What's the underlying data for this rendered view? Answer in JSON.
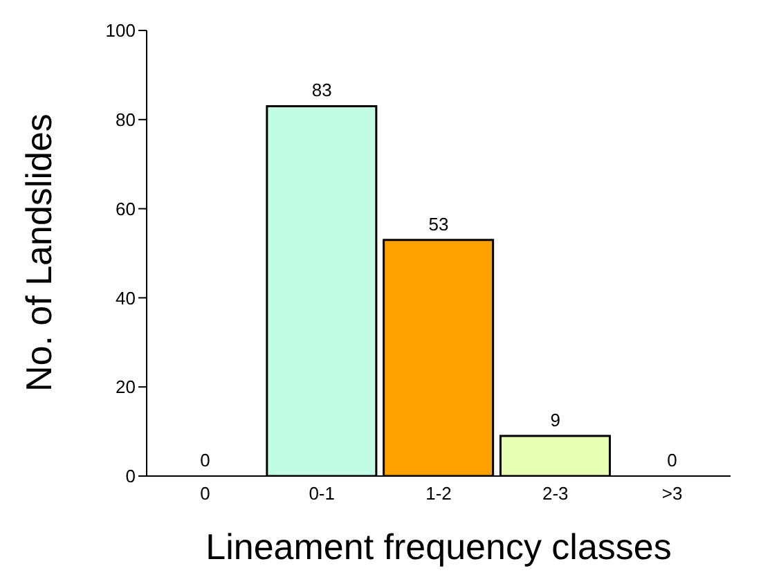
{
  "chart_data": {
    "type": "bar",
    "xlabel": "Lineament frequency classes",
    "ylabel": "No. of Landslides",
    "categories": [
      "0",
      "0-1",
      "1-2",
      "2-3",
      ">3"
    ],
    "values": [
      0,
      83,
      53,
      9,
      0
    ],
    "colors": [
      "#c3fce4",
      "#c3fce4",
      "#ffa200",
      "#e6ffb3",
      "#e6ffb3"
    ],
    "ylim": [
      0,
      100
    ],
    "yticks": [
      0,
      20,
      40,
      60,
      80,
      100
    ],
    "grid": false,
    "data_labels": true
  }
}
